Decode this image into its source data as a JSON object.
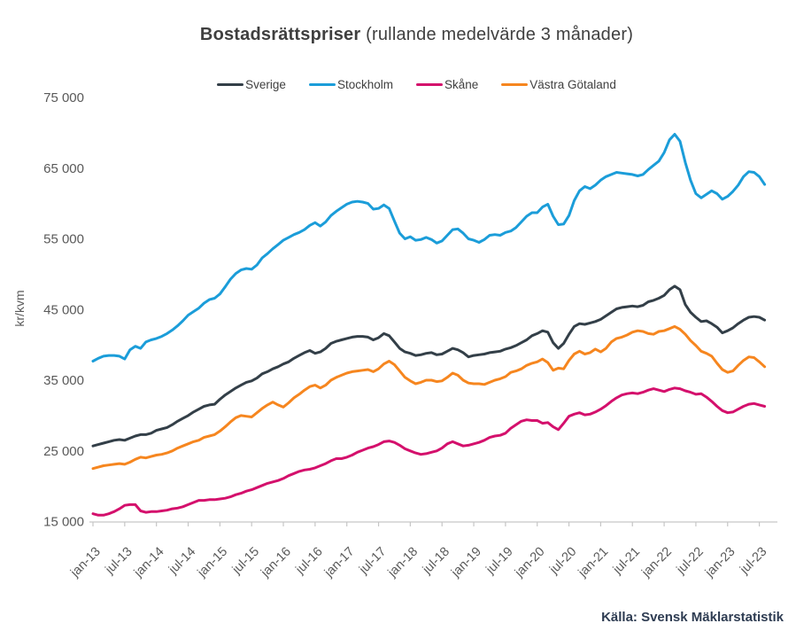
{
  "title": {
    "bold": "Bostadsrättspriser",
    "rest": "(rullande medelvärde 3 månader)"
  },
  "source": "Källa: Svensk Mäklarstatistik",
  "axis": {
    "text_color": "#595959",
    "line_color": "#c6c6c6"
  },
  "chart_data": {
    "type": "line",
    "title": "Bostadsrättspriser (rullande medelvärde 3 månader)",
    "xlabel": "",
    "ylabel": "kr/kvm",
    "ylim": [
      15000,
      75000
    ],
    "ytick_step": 10000,
    "ytick_labels": [
      "15 000",
      "25 000",
      "35 000",
      "45 000",
      "55 000",
      "65 000",
      "75 000"
    ],
    "grid": false,
    "legend_position": "top",
    "x_unit": "month",
    "x_start": "jan-13",
    "x_end": "aug-23",
    "x_tick_every_months": 6,
    "x_tick_labels": [
      "jan-13",
      "jul-13",
      "jan-14",
      "jul-14",
      "jan-15",
      "jul-15",
      "jan-16",
      "jul-16",
      "jan-17",
      "jul-17",
      "jan-18",
      "jul-18",
      "jan-19",
      "jul-19",
      "jan-20",
      "jul-20",
      "jan-21",
      "jul-21",
      "jan-22",
      "jul-22",
      "jan-23",
      "jul-23"
    ],
    "series": [
      {
        "name": "Sverige",
        "color": "#333f48",
        "values": [
          25700,
          25900,
          26100,
          26300,
          26500,
          26600,
          26500,
          26800,
          27100,
          27300,
          27300,
          27500,
          27900,
          28100,
          28300,
          28700,
          29200,
          29600,
          30000,
          30500,
          30900,
          31300,
          31500,
          31600,
          32300,
          32900,
          33400,
          33900,
          34300,
          34700,
          34900,
          35300,
          35900,
          36200,
          36600,
          36900,
          37300,
          37600,
          38100,
          38500,
          38900,
          39200,
          38800,
          39000,
          39500,
          40200,
          40500,
          40700,
          40900,
          41100,
          41200,
          41200,
          41100,
          40700,
          41000,
          41600,
          41300,
          40400,
          39500,
          39000,
          38800,
          38500,
          38600,
          38800,
          38900,
          38600,
          38700,
          39100,
          39500,
          39300,
          38900,
          38300,
          38500,
          38600,
          38700,
          38900,
          39000,
          39100,
          39400,
          39600,
          39900,
          40300,
          40700,
          41300,
          41600,
          42000,
          41800,
          40300,
          39500,
          40200,
          41500,
          42600,
          43000,
          42900,
          43100,
          43300,
          43600,
          44100,
          44600,
          45100,
          45300,
          45400,
          45500,
          45400,
          45600,
          46100,
          46300,
          46600,
          47000,
          47800,
          48300,
          47800,
          45700,
          44600,
          43900,
          43300,
          43400,
          43000,
          42500,
          41700,
          42000,
          42400,
          43000,
          43500,
          43900,
          44000,
          43900,
          43500
        ]
      },
      {
        "name": "Stockholm",
        "color": "#1b9dd9",
        "values": [
          37700,
          38100,
          38400,
          38500,
          38500,
          38400,
          38000,
          39300,
          39800,
          39500,
          40400,
          40700,
          40900,
          41200,
          41600,
          42100,
          42700,
          43400,
          44200,
          44700,
          45200,
          45900,
          46400,
          46600,
          47200,
          48200,
          49300,
          50100,
          50600,
          50800,
          50700,
          51300,
          52300,
          52900,
          53600,
          54200,
          54800,
          55200,
          55600,
          55900,
          56300,
          56900,
          57300,
          56800,
          57400,
          58300,
          58900,
          59400,
          59900,
          60200,
          60300,
          60200,
          60000,
          59200,
          59300,
          59800,
          59300,
          57500,
          55800,
          55000,
          55300,
          54800,
          54900,
          55200,
          54900,
          54400,
          54700,
          55500,
          56300,
          56400,
          55800,
          55000,
          54800,
          54500,
          54900,
          55500,
          55600,
          55500,
          55900,
          56100,
          56600,
          57400,
          58200,
          58700,
          58700,
          59500,
          59900,
          58200,
          57000,
          57100,
          58300,
          60400,
          61800,
          62400,
          62100,
          62600,
          63300,
          63800,
          64100,
          64400,
          64300,
          64200,
          64100,
          63900,
          64100,
          64800,
          65400,
          66000,
          67200,
          69000,
          69800,
          68800,
          65800,
          63300,
          61400,
          60800,
          61300,
          61800,
          61400,
          60600,
          61000,
          61700,
          62600,
          63800,
          64500,
          64400,
          63800,
          62700
        ]
      },
      {
        "name": "Skåne",
        "color": "#d4106c",
        "values": [
          16100,
          15900,
          15900,
          16100,
          16400,
          16800,
          17300,
          17400,
          17400,
          16500,
          16300,
          16400,
          16400,
          16500,
          16600,
          16800,
          16900,
          17100,
          17400,
          17700,
          18000,
          18000,
          18100,
          18100,
          18200,
          18300,
          18500,
          18800,
          19000,
          19300,
          19500,
          19800,
          20100,
          20400,
          20600,
          20800,
          21100,
          21500,
          21800,
          22100,
          22300,
          22400,
          22600,
          22900,
          23200,
          23600,
          23900,
          23900,
          24100,
          24400,
          24800,
          25100,
          25400,
          25600,
          25900,
          26300,
          26400,
          26200,
          25800,
          25300,
          25000,
          24700,
          24500,
          24600,
          24800,
          25000,
          25400,
          26000,
          26300,
          26000,
          25700,
          25800,
          26000,
          26200,
          26500,
          26900,
          27100,
          27200,
          27500,
          28200,
          28700,
          29200,
          29400,
          29300,
          29300,
          28900,
          29000,
          28400,
          28000,
          28900,
          29900,
          30200,
          30400,
          30100,
          30200,
          30500,
          30900,
          31400,
          32000,
          32500,
          32900,
          33100,
          33200,
          33100,
          33300,
          33600,
          33800,
          33600,
          33400,
          33700,
          33900,
          33800,
          33500,
          33300,
          33000,
          33100,
          32600,
          32000,
          31300,
          30700,
          30400,
          30500,
          30900,
          31300,
          31600,
          31700,
          31500,
          31300
        ]
      },
      {
        "name": "Västra Götaland",
        "color": "#f6861f",
        "values": [
          22500,
          22700,
          22900,
          23000,
          23100,
          23200,
          23100,
          23400,
          23800,
          24100,
          24000,
          24200,
          24400,
          24500,
          24700,
          25000,
          25400,
          25700,
          26000,
          26300,
          26500,
          26900,
          27100,
          27300,
          27800,
          28400,
          29100,
          29700,
          30000,
          29900,
          29800,
          30400,
          31000,
          31500,
          31900,
          31500,
          31200,
          31800,
          32500,
          33000,
          33600,
          34100,
          34300,
          33900,
          34300,
          35000,
          35400,
          35700,
          36000,
          36200,
          36300,
          36400,
          36500,
          36200,
          36600,
          37300,
          37700,
          37200,
          36300,
          35400,
          34900,
          34500,
          34700,
          35000,
          35000,
          34800,
          34900,
          35400,
          36000,
          35700,
          35000,
          34600,
          34500,
          34500,
          34400,
          34700,
          35000,
          35200,
          35500,
          36100,
          36300,
          36600,
          37100,
          37400,
          37600,
          38000,
          37500,
          36400,
          36700,
          36600,
          37800,
          38700,
          39100,
          38700,
          38900,
          39400,
          39000,
          39500,
          40400,
          40900,
          41100,
          41400,
          41800,
          42000,
          41900,
          41600,
          41500,
          41900,
          42000,
          42300,
          42600,
          42200,
          41500,
          40600,
          39900,
          39100,
          38800,
          38400,
          37400,
          36500,
          36100,
          36300,
          37100,
          37800,
          38300,
          38200,
          37600,
          36900
        ]
      }
    ]
  }
}
